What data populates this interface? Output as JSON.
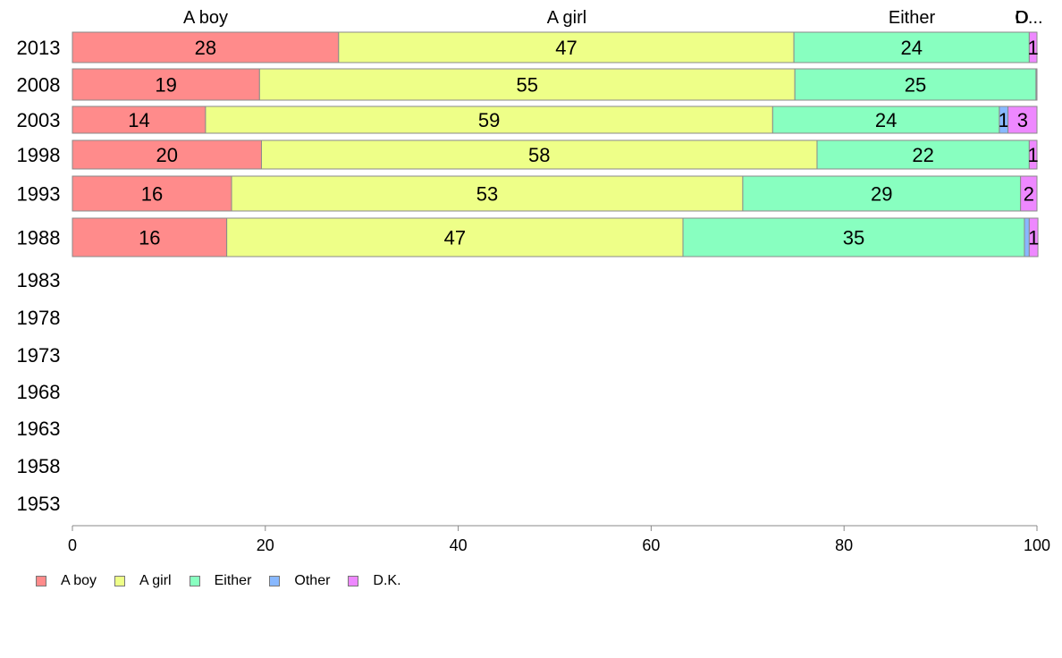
{
  "chart_data": {
    "type": "bar",
    "orientation": "horizontal",
    "stacked": true,
    "categories": [
      "2013",
      "2008",
      "2003",
      "1998",
      "1993",
      "1988",
      "1983",
      "1978",
      "1973",
      "1968",
      "1963",
      "1958",
      "1953"
    ],
    "series": [
      {
        "name": "A boy",
        "color": "#ff8b8b",
        "values": [
          27.6,
          19.4,
          13.8,
          19.6,
          16.5,
          16,
          null,
          null,
          null,
          null,
          null,
          null,
          null
        ],
        "labels": [
          "28",
          "19",
          "14",
          "20",
          "16",
          "16",
          "",
          "",
          "",
          "",
          "",
          "",
          ""
        ]
      },
      {
        "name": "A girl",
        "color": "#eeff88",
        "values": [
          47.2,
          55.5,
          58.8,
          57.6,
          53.0,
          47.3,
          null,
          null,
          null,
          null,
          null,
          null,
          null
        ],
        "labels": [
          "47",
          "55",
          "59",
          "58",
          "53",
          "47",
          "",
          "",
          "",
          "",
          "",
          "",
          ""
        ]
      },
      {
        "name": "Either",
        "color": "#88ffc0",
        "values": [
          24.4,
          25.0,
          23.5,
          22.0,
          28.8,
          35.4,
          null,
          null,
          null,
          null,
          null,
          null,
          null
        ],
        "labels": [
          "24",
          "25",
          "24",
          "22",
          "29",
          "35",
          "",
          "",
          "",
          "",
          "",
          "",
          ""
        ]
      },
      {
        "name": "Other",
        "color": "#88b8ff",
        "values": [
          0,
          0,
          0.9,
          0,
          0,
          0.5,
          null,
          null,
          null,
          null,
          null,
          null,
          null
        ],
        "labels": [
          "",
          "",
          "1",
          "",
          "",
          "",
          "",
          "",
          "",
          "",
          "",
          "",
          ""
        ]
      },
      {
        "name": "D.K.",
        "color": "#ee88ff",
        "values": [
          0.8,
          0.1,
          3.0,
          0.8,
          1.7,
          0.9,
          null,
          null,
          null,
          null,
          null,
          null,
          null
        ],
        "labels": [
          "1",
          "",
          "3",
          "1",
          "2",
          "1",
          "",
          "",
          "",
          "",
          "",
          "",
          ""
        ]
      }
    ],
    "top_labels": [
      "A boy",
      "A girl",
      "Either",
      "O",
      "D..."
    ],
    "xlim": [
      0,
      100
    ],
    "xticks": [
      "0",
      "20",
      "40",
      "60",
      "80",
      "100"
    ],
    "grid": false,
    "legend_position": "bottom-left"
  }
}
